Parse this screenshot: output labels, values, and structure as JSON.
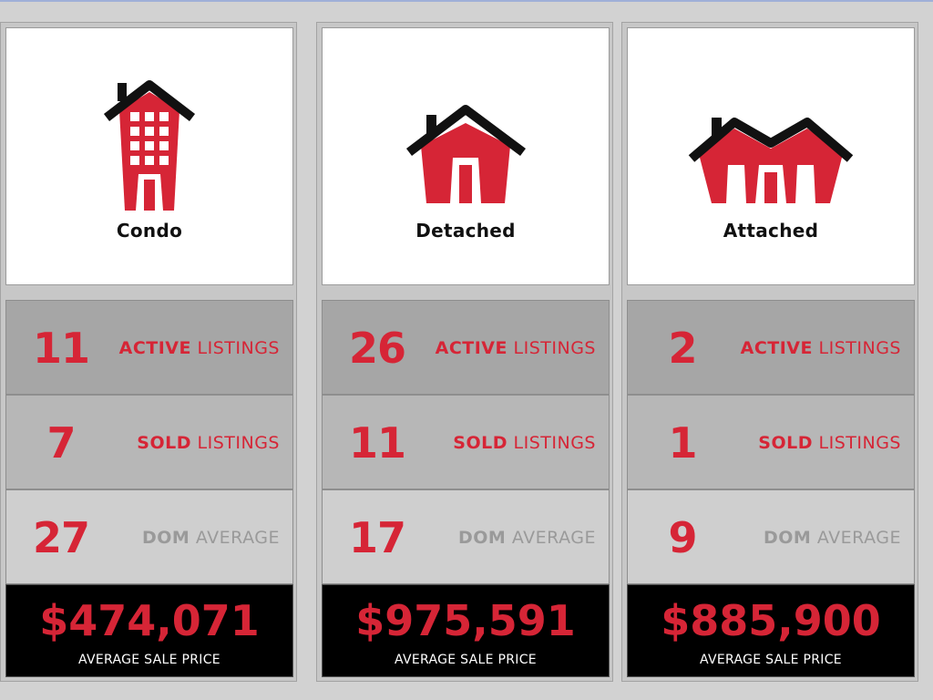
{
  "colors": {
    "accent": "#d62536",
    "dark": "#111111",
    "price_bg": "#000000"
  },
  "columns": [
    {
      "icon": "detached-house-icon",
      "type": "Detached",
      "active": {
        "value": "26",
        "bold": "ACTIVE",
        "rest": "LISTINGS"
      },
      "sold": {
        "value": "11",
        "bold": "SOLD",
        "rest": "LISTINGS"
      },
      "dom": {
        "value": "17",
        "bold": "DOM",
        "rest": "AVERAGE"
      },
      "price": "$975,591",
      "price_label": "AVERAGE SALE PRICE"
    },
    {
      "icon": "attached-house-icon",
      "type": "Attached",
      "active": {
        "value": "2",
        "bold": "ACTIVE",
        "rest": "LISTINGS"
      },
      "sold": {
        "value": "1",
        "bold": "SOLD",
        "rest": "LISTINGS"
      },
      "dom": {
        "value": "9",
        "bold": "DOM",
        "rest": "AVERAGE"
      },
      "price": "$885,900",
      "price_label": "AVERAGE SALE PRICE"
    },
    {
      "icon": "condo-building-icon",
      "type": "Condo",
      "active": {
        "value": "11",
        "bold": "ACTIVE",
        "rest": "LISTINGS"
      },
      "sold": {
        "value": "7",
        "bold": "SOLD",
        "rest": "LISTINGS"
      },
      "dom": {
        "value": "27",
        "bold": "DOM",
        "rest": "AVERAGE"
      },
      "price": "$474,071",
      "price_label": "AVERAGE SALE PRICE"
    }
  ]
}
